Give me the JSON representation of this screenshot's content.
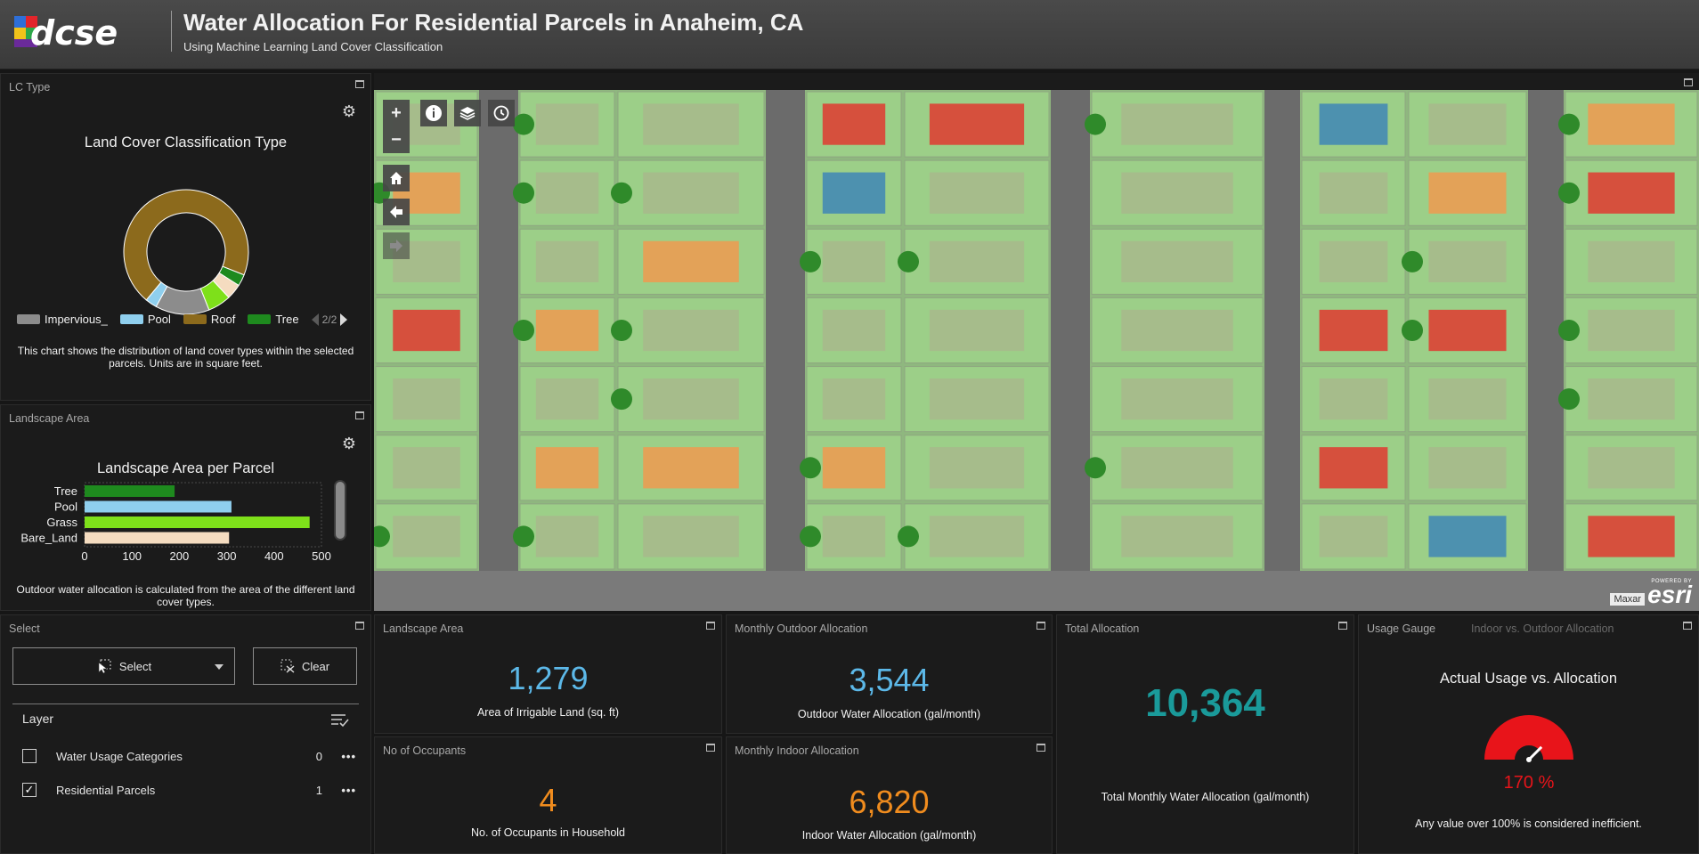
{
  "header": {
    "logo_text": "dcse",
    "title": "Water Allocation For Residential Parcels in Anaheim, CA",
    "subtitle": "Using Machine Learning Land Cover Classification"
  },
  "lc_panel": {
    "panel_title": "LC Type",
    "chart_title": "Land Cover Classification Type",
    "legend": [
      {
        "label": "Impervious_",
        "color": "#8c8c8c"
      },
      {
        "label": "Pool",
        "color": "#8fcfee"
      },
      {
        "label": "Roof",
        "color": "#8c6a1c"
      },
      {
        "label": "Tree",
        "color": "#1e8a1e"
      }
    ],
    "pager": "2/2",
    "note": "This chart shows the distribution of land cover types within the selected parcels. Units are in square feet."
  },
  "la_panel": {
    "panel_title": "Landscape Area",
    "chart_title": "Landscape Area per Parcel",
    "note": "Outdoor water allocation is calculated from the area of the different land cover types."
  },
  "chart_data": [
    {
      "type": "pie",
      "title": "Land Cover Classification Type",
      "categories": [
        "Roof",
        "Tree",
        "Bare_Land",
        "Grass",
        "Impervious_",
        "Pool"
      ],
      "values": [
        70,
        3,
        4,
        6,
        14,
        3
      ],
      "colors": [
        "#8c6a1c",
        "#1e8a1e",
        "#f5dcc0",
        "#7ee01a",
        "#8c8c8c",
        "#8fcfee"
      ]
    },
    {
      "type": "bar",
      "title": "Landscape Area per Parcel",
      "categories": [
        "Tree",
        "Pool",
        "Grass",
        "Bare_Land"
      ],
      "values": [
        190,
        310,
        475,
        305
      ],
      "colors": [
        "#1e8a1e",
        "#8fcfee",
        "#7ee01a",
        "#f5dcc0"
      ],
      "xticks": [
        "0",
        "100",
        "200",
        "300",
        "400",
        "500"
      ],
      "xlim": [
        0,
        500
      ]
    },
    {
      "type": "gauge",
      "title": "Actual Usage vs. Allocation",
      "value": 170,
      "unit": "%",
      "color": "#e8141a"
    }
  ],
  "map": {
    "attribution": "Maxar",
    "powered_by": "POWERED BY",
    "esri": "esri",
    "buttons": {
      "zoom_in": "+",
      "zoom_out": "−"
    }
  },
  "select_panel": {
    "panel_title": "Select",
    "select_label": "Select",
    "clear_label": "Clear",
    "layer_heading": "Layer",
    "layers": [
      {
        "name": "Water Usage Categories",
        "count": "0",
        "checked": false
      },
      {
        "name": "Residential Parcels",
        "count": "1",
        "checked": true
      }
    ]
  },
  "indicators": {
    "landscape": {
      "panel_title": "Landscape Area",
      "value": "1,279",
      "caption": "Area of Irrigable Land (sq. ft)",
      "color": "#5cb8e8"
    },
    "outdoor": {
      "panel_title": "Monthly Outdoor Allocation",
      "value": "3,544",
      "caption": "Outdoor Water Allocation (gal/month)",
      "color": "#5cb8e8"
    },
    "total": {
      "panel_title": "Total Allocation",
      "value": "10,364",
      "caption": "Total Monthly Water Allocation (gal/month)",
      "color": "#1a9a9a"
    },
    "occupants": {
      "panel_title": "No of Occupants",
      "value": "4",
      "caption": "No. of Occupants in Household",
      "color": "#f08c1e"
    },
    "indoor": {
      "panel_title": "Monthly Indoor Allocation",
      "value": "6,820",
      "caption": "Indoor Water Allocation (gal/month)",
      "color": "#f08c1e"
    }
  },
  "gauge_panel": {
    "panel_title": "Usage Gauge",
    "tab2": "Indoor vs. Outdoor Allocation",
    "title": "Actual Usage vs. Allocation",
    "value_text": "170 %",
    "note": "Any value over 100% is considered inefficient."
  }
}
